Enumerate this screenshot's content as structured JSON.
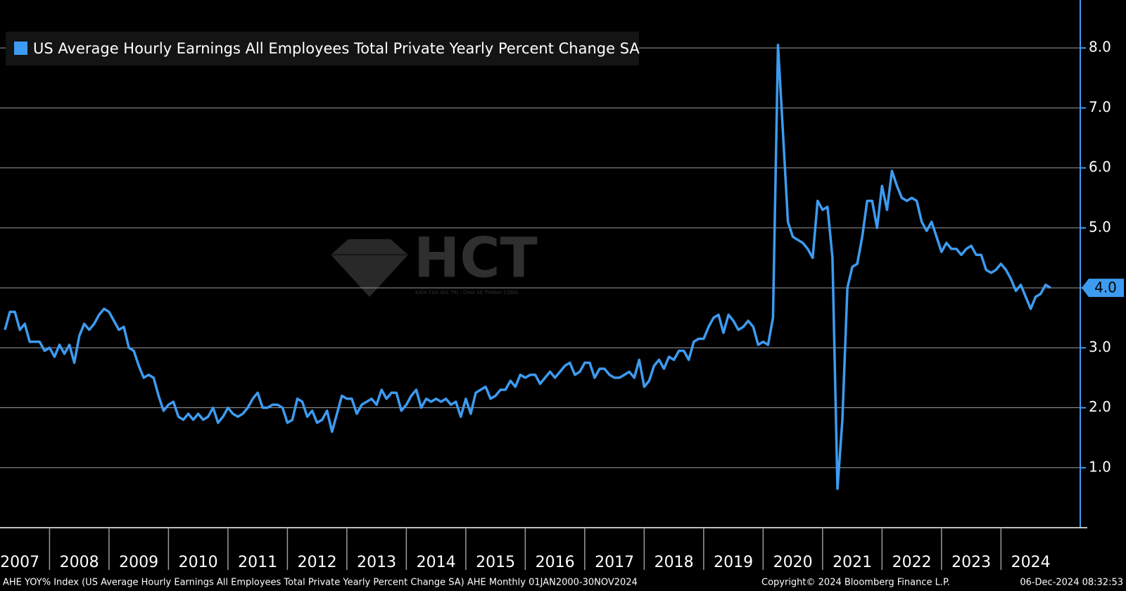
{
  "chart_data": {
    "type": "line",
    "legend_title": "US Average Hourly Earnings All Employees Total Private Yearly Percent Change SA",
    "footer_left": "AHE YOY% Index (US Average Hourly Earnings All Employees Total Private Yearly Percent Change SA) AHE  Monthly 01JAN2000-30NOV2024",
    "footer_middle": "Copyright© 2024 Bloomberg Finance L.P.",
    "footer_right": "06-Dec-2024 08:32:53",
    "watermark": "HCT",
    "watermark_tagline": "KIẾN TẠO GIÁ TRỊ - CHIA SẺ THÀNH CÔNG",
    "grid": true,
    "xlim": [
      "2007-03",
      "2025-05"
    ],
    "xticks": [
      2007,
      2008,
      2009,
      2010,
      2011,
      2012,
      2013,
      2014,
      2015,
      2016,
      2017,
      2018,
      2019,
      2020,
      2021,
      2022,
      2023,
      2024
    ],
    "ylim": [
      0,
      8.8
    ],
    "yticks": [
      {
        "value": 1,
        "label": "1.0"
      },
      {
        "value": 2,
        "label": "2.0"
      },
      {
        "value": 3,
        "label": "3.0"
      },
      {
        "value": 4,
        "label": "4.0"
      },
      {
        "value": 5,
        "label": "5.0"
      },
      {
        "value": 6,
        "label": "6.0"
      },
      {
        "value": 7,
        "label": "7.0"
      },
      {
        "value": 8,
        "label": "8.0"
      }
    ],
    "x": [
      "2007-04",
      "2007-05",
      "2007-06",
      "2007-07",
      "2007-08",
      "2007-09",
      "2007-10",
      "2007-11",
      "2007-12",
      "2008-01",
      "2008-02",
      "2008-03",
      "2008-04",
      "2008-05",
      "2008-06",
      "2008-07",
      "2008-08",
      "2008-09",
      "2008-10",
      "2008-11",
      "2008-12",
      "2009-01",
      "2009-02",
      "2009-03",
      "2009-04",
      "2009-05",
      "2009-06",
      "2009-07",
      "2009-08",
      "2009-09",
      "2009-10",
      "2009-11",
      "2009-12",
      "2010-01",
      "2010-02",
      "2010-03",
      "2010-04",
      "2010-05",
      "2010-06",
      "2010-07",
      "2010-08",
      "2010-09",
      "2010-10",
      "2010-11",
      "2010-12",
      "2011-01",
      "2011-02",
      "2011-03",
      "2011-04",
      "2011-05",
      "2011-06",
      "2011-07",
      "2011-08",
      "2011-09",
      "2011-10",
      "2011-11",
      "2011-12",
      "2012-01",
      "2012-02",
      "2012-03",
      "2012-04",
      "2012-05",
      "2012-06",
      "2012-07",
      "2012-08",
      "2012-09",
      "2012-10",
      "2012-11",
      "2012-12",
      "2013-01",
      "2013-02",
      "2013-03",
      "2013-04",
      "2013-05",
      "2013-06",
      "2013-07",
      "2013-08",
      "2013-09",
      "2013-10",
      "2013-11",
      "2013-12",
      "2014-01",
      "2014-02",
      "2014-03",
      "2014-04",
      "2014-05",
      "2014-06",
      "2014-07",
      "2014-08",
      "2014-09",
      "2014-10",
      "2014-11",
      "2014-12",
      "2015-01",
      "2015-02",
      "2015-03",
      "2015-04",
      "2015-05",
      "2015-06",
      "2015-07",
      "2015-08",
      "2015-09",
      "2015-10",
      "2015-11",
      "2015-12",
      "2016-01",
      "2016-02",
      "2016-03",
      "2016-04",
      "2016-05",
      "2016-06",
      "2016-07",
      "2016-08",
      "2016-09",
      "2016-10",
      "2016-11",
      "2016-12",
      "2017-01",
      "2017-02",
      "2017-03",
      "2017-04",
      "2017-05",
      "2017-06",
      "2017-07",
      "2017-08",
      "2017-09",
      "2017-10",
      "2017-11",
      "2017-12",
      "2018-01",
      "2018-02",
      "2018-03",
      "2018-04",
      "2018-05",
      "2018-06",
      "2018-07",
      "2018-08",
      "2018-09",
      "2018-10",
      "2018-11",
      "2018-12",
      "2019-01",
      "2019-02",
      "2019-03",
      "2019-04",
      "2019-05",
      "2019-06",
      "2019-07",
      "2019-08",
      "2019-09",
      "2019-10",
      "2019-11",
      "2019-12",
      "2020-01",
      "2020-02",
      "2020-03",
      "2020-04",
      "2020-05",
      "2020-06",
      "2020-07",
      "2020-08",
      "2020-09",
      "2020-10",
      "2020-11",
      "2020-12",
      "2021-01",
      "2021-02",
      "2021-03",
      "2021-04",
      "2021-05",
      "2021-06",
      "2021-07",
      "2021-08",
      "2021-09",
      "2021-10",
      "2021-11",
      "2021-12",
      "2022-01",
      "2022-02",
      "2022-03",
      "2022-04",
      "2022-05",
      "2022-06",
      "2022-07",
      "2022-08",
      "2022-09",
      "2022-10",
      "2022-11",
      "2022-12",
      "2023-01",
      "2023-02",
      "2023-03",
      "2023-04",
      "2023-05",
      "2023-06",
      "2023-07",
      "2023-08",
      "2023-09",
      "2023-10",
      "2023-11",
      "2023-12",
      "2024-01",
      "2024-02",
      "2024-03",
      "2024-04",
      "2024-05",
      "2024-06",
      "2024-07",
      "2024-08",
      "2024-09",
      "2024-10",
      "2024-11"
    ],
    "series": [
      {
        "name": "US Average Hourly Earnings All Employees Total Private Yearly Percent Change SA",
        "color": "#3d9bf0",
        "last_value_label": "4.0",
        "values": [
          3.3,
          3.6,
          3.6,
          3.3,
          3.4,
          3.1,
          3.1,
          3.1,
          2.95,
          3.0,
          2.85,
          3.05,
          2.9,
          3.05,
          2.75,
          3.2,
          3.4,
          3.3,
          3.4,
          3.55,
          3.65,
          3.6,
          3.45,
          3.3,
          3.35,
          3.0,
          2.95,
          2.7,
          2.5,
          2.55,
          2.5,
          2.2,
          1.95,
          2.05,
          2.1,
          1.85,
          1.8,
          1.9,
          1.8,
          1.9,
          1.8,
          1.85,
          2.0,
          1.75,
          1.85,
          2.0,
          1.9,
          1.85,
          1.9,
          2.0,
          2.15,
          2.25,
          2.0,
          2.0,
          2.05,
          2.05,
          2.0,
          1.75,
          1.8,
          2.15,
          2.1,
          1.85,
          1.95,
          1.75,
          1.8,
          1.95,
          1.6,
          1.9,
          2.2,
          2.15,
          2.15,
          1.9,
          2.05,
          2.1,
          2.15,
          2.05,
          2.3,
          2.15,
          2.25,
          2.25,
          1.95,
          2.05,
          2.2,
          2.3,
          2.0,
          2.15,
          2.1,
          2.15,
          2.1,
          2.15,
          2.05,
          2.1,
          1.85,
          2.15,
          1.9,
          2.25,
          2.3,
          2.35,
          2.15,
          2.2,
          2.3,
          2.3,
          2.45,
          2.35,
          2.55,
          2.5,
          2.55,
          2.55,
          2.4,
          2.5,
          2.6,
          2.5,
          2.6,
          2.7,
          2.75,
          2.55,
          2.6,
          2.75,
          2.75,
          2.5,
          2.65,
          2.65,
          2.55,
          2.5,
          2.5,
          2.55,
          2.6,
          2.5,
          2.8,
          2.35,
          2.45,
          2.7,
          2.8,
          2.65,
          2.85,
          2.8,
          2.95,
          2.95,
          2.8,
          3.1,
          3.15,
          3.15,
          3.35,
          3.5,
          3.55,
          3.25,
          3.55,
          3.45,
          3.3,
          3.35,
          3.45,
          3.35,
          3.05,
          3.1,
          3.05,
          3.5,
          8.05,
          6.6,
          5.1,
          4.85,
          4.8,
          4.75,
          4.65,
          4.5,
          5.45,
          5.3,
          5.35,
          4.5,
          0.65,
          1.8,
          4.0,
          4.35,
          4.4,
          4.85,
          5.45,
          5.45,
          5.0,
          5.7,
          5.3,
          5.95,
          5.7,
          5.5,
          5.45,
          5.5,
          5.45,
          5.1,
          4.95,
          5.1,
          4.85,
          4.6,
          4.75,
          4.65,
          4.65,
          4.55,
          4.65,
          4.7,
          4.55,
          4.55,
          4.3,
          4.25,
          4.3,
          4.4,
          4.3,
          4.15,
          3.95,
          4.05,
          3.85,
          3.65,
          3.85,
          3.9,
          4.05,
          4.0
        ]
      }
    ]
  }
}
